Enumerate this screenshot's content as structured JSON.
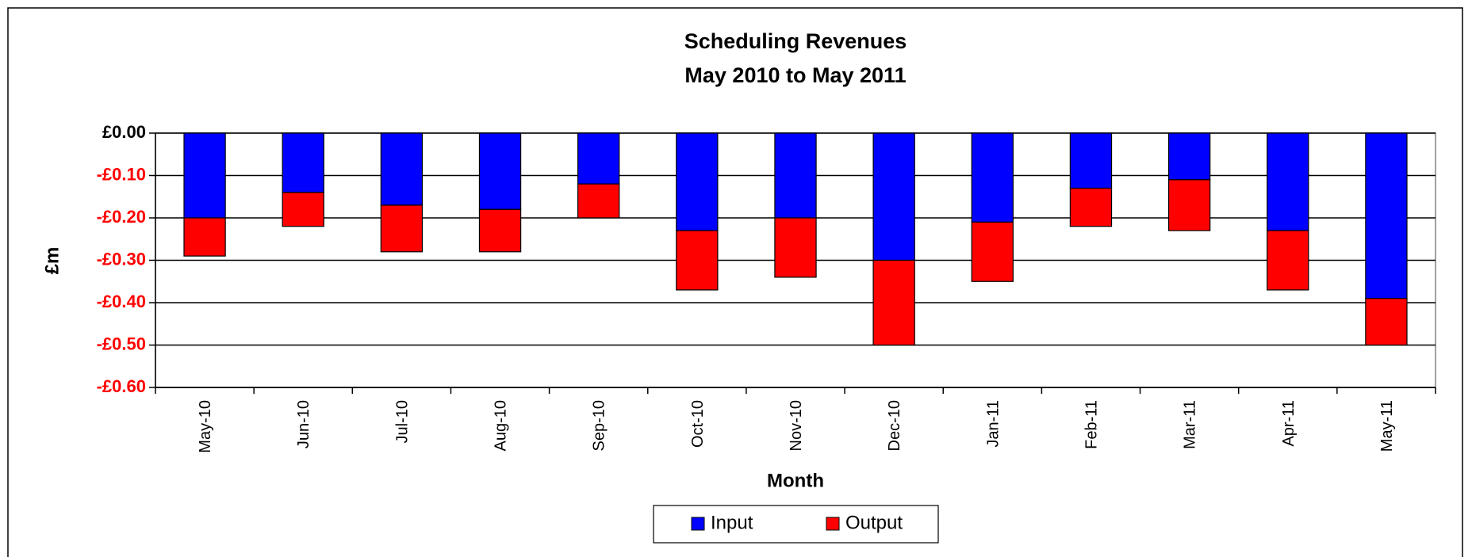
{
  "chart_data": {
    "type": "stacked_bar",
    "title": "Scheduling Revenues",
    "subtitle": "May 2010 to May 2011",
    "x_label": "Month",
    "y_label": "£m",
    "categories": [
      "May-10",
      "Jun-10",
      "Jul-10",
      "Aug-10",
      "Sep-10",
      "Oct-10",
      "Nov-10",
      "Dec-10",
      "Jan-11",
      "Feb-11",
      "Mar-11",
      "Apr-11",
      "May-11"
    ],
    "series": [
      {
        "name": "Input",
        "color": "#0000ff",
        "values": [
          -0.2,
          -0.14,
          -0.17,
          -0.18,
          -0.12,
          -0.23,
          -0.2,
          -0.3,
          -0.21,
          -0.13,
          -0.11,
          -0.23,
          -0.39
        ]
      },
      {
        "name": "Output",
        "color": "#ff0000",
        "values": [
          -0.09,
          -0.08,
          -0.11,
          -0.1,
          -0.08,
          -0.14,
          -0.14,
          -0.2,
          -0.14,
          -0.09,
          -0.12,
          -0.14,
          -0.11
        ]
      }
    ],
    "ylim": [
      -0.6,
      0
    ],
    "yticks": [
      {
        "value": 0,
        "label": "£0.00"
      },
      {
        "value": -0.1,
        "label": "-£0.10"
      },
      {
        "value": -0.2,
        "label": "-£0.20"
      },
      {
        "value": -0.3,
        "label": "-£0.30"
      },
      {
        "value": -0.4,
        "label": "-£0.40"
      },
      {
        "value": -0.5,
        "label": "-£0.50"
      },
      {
        "value": -0.6,
        "label": "-£0.60"
      }
    ],
    "negative_tick_color": "#ff0000",
    "grid": true,
    "legend": "bottom"
  }
}
